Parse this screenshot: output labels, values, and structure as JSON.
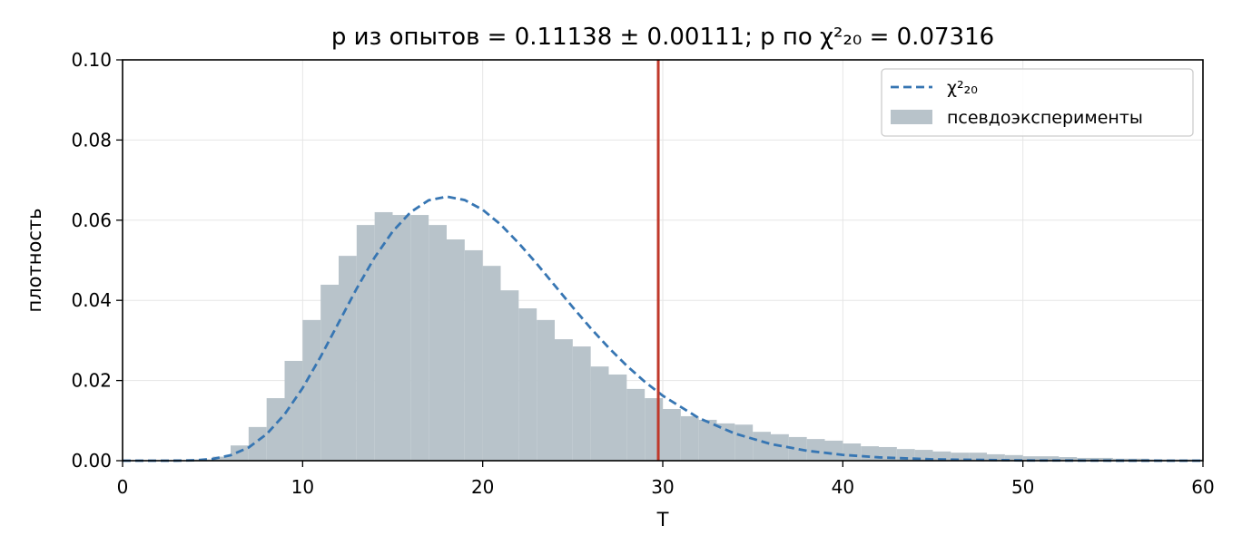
{
  "chart_data": {
    "type": "histogram",
    "title": "p из опытов = 0.11138 ± 0.00111; p по χ²₂₀ = 0.07316",
    "x_label": "T",
    "y_label": "плотность",
    "xlim": [
      0,
      60
    ],
    "ylim": [
      0,
      0.1
    ],
    "xticks": [
      0,
      10,
      20,
      30,
      40,
      50,
      60
    ],
    "yticks": [
      {
        "value": 0,
        "label": "0.00"
      },
      {
        "value": 0.02,
        "label": "0.02"
      },
      {
        "value": 0.04,
        "label": "0.04"
      },
      {
        "value": 0.06,
        "label": "0.06"
      },
      {
        "value": 0.08,
        "label": "0.08"
      },
      {
        "value": 0.1,
        "label": "0.10"
      }
    ],
    "grid": true,
    "legend": "upper right",
    "vline": {
      "x": 29.75,
      "color": "#c0392b"
    },
    "series": [
      {
        "name": "χ²₂₀",
        "type": "line",
        "style": "dashed",
        "color": "#3776b3",
        "x": [
          0,
          1,
          2,
          3,
          4,
          5,
          6,
          7,
          8,
          9,
          10,
          11,
          12,
          13,
          14,
          15,
          16,
          17,
          18,
          19,
          20,
          21,
          22,
          23,
          24,
          25,
          26,
          27,
          28,
          29,
          30,
          32,
          34,
          36,
          38,
          40,
          42,
          45,
          50,
          55,
          60
        ],
        "values": [
          0,
          0,
          5e-07,
          1.18e-05,
          9.5e-05,
          0.000431,
          0.00135,
          0.00328,
          0.00662,
          0.01158,
          0.01813,
          0.02594,
          0.03443,
          0.04293,
          0.05072,
          0.05719,
          0.06202,
          0.06496,
          0.06588,
          0.06503,
          0.0626,
          0.0589,
          0.05426,
          0.04915,
          0.04372,
          0.03829,
          0.03305,
          0.02816,
          0.02369,
          0.0197,
          0.01621,
          0.01065,
          0.00677,
          0.00416,
          0.00249,
          0.00145,
          0.00083,
          0.00034,
          7.3e-05,
          1.4e-05,
          2.5e-06
        ]
      },
      {
        "name": "псевдоэксперименты",
        "type": "histogram",
        "color": "#b8c3ca",
        "bins": [
          0,
          1,
          2,
          3,
          4,
          5,
          6,
          7,
          8,
          9,
          10,
          11,
          12,
          13,
          14,
          15,
          16,
          17,
          18,
          19,
          20,
          21,
          22,
          23,
          24,
          25,
          26,
          27,
          28,
          29,
          30,
          31,
          32,
          33,
          34,
          35,
          36,
          37,
          38,
          39,
          40,
          41,
          42,
          43,
          44,
          45,
          46,
          47,
          48,
          49,
          50,
          51,
          52,
          53,
          54,
          55,
          56,
          57,
          58,
          59,
          60
        ],
        "values": [
          0,
          0,
          0,
          0.0001,
          0.0003,
          0.001,
          0.0038,
          0.0084,
          0.0156,
          0.0249,
          0.0351,
          0.0439,
          0.0511,
          0.0588,
          0.062,
          0.0613,
          0.0613,
          0.0588,
          0.0552,
          0.0525,
          0.0486,
          0.0425,
          0.038,
          0.0351,
          0.0303,
          0.0285,
          0.0235,
          0.0215,
          0.0179,
          0.0156,
          0.0129,
          0.0111,
          0.0102,
          0.0093,
          0.009,
          0.0072,
          0.0066,
          0.0059,
          0.0054,
          0.005,
          0.0043,
          0.0036,
          0.0034,
          0.0029,
          0.0027,
          0.0023,
          0.002,
          0.002,
          0.0016,
          0.0014,
          0.0011,
          0.0011,
          0.0009,
          0.0007,
          0.0007,
          0.0005,
          0.0005,
          0.0003,
          0.0003,
          0.0003
        ]
      }
    ]
  }
}
